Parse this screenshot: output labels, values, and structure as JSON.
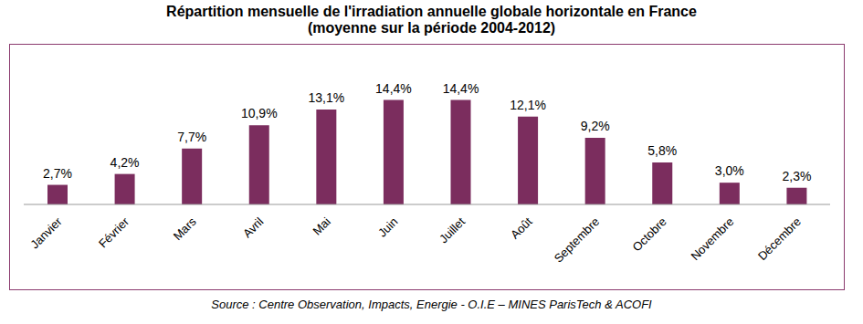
{
  "chart_data": {
    "type": "bar",
    "title": "Répartition mensuelle de l'irradiation annuelle globale horizontale en France",
    "subtitle": "(moyenne sur la période 2004-2012)",
    "source": "Source : Centre Observation, Impacts, Energie - O.I.E – MINES ParisTech & ACOFI",
    "categories": [
      "Janvier",
      "Février",
      "Mars",
      "Avril",
      "Mai",
      "Juin",
      "Juillet",
      "Août",
      "Septembre",
      "Octobre",
      "Novembre",
      "Décembre"
    ],
    "values": [
      2.7,
      4.2,
      7.7,
      10.9,
      13.1,
      14.4,
      14.4,
      12.1,
      9.2,
      5.8,
      3.0,
      2.3
    ],
    "value_labels": [
      "2,7%",
      "4,2%",
      "7,7%",
      "10,9%",
      "13,1%",
      "14,4%",
      "14,4%",
      "12,1%",
      "9,2%",
      "5,8%",
      "3,0%",
      "2,3%"
    ],
    "color": "#7b2d5e",
    "ylim": [
      0,
      19
    ],
    "data_labels": true,
    "tick_labels": "x",
    "grid": false
  }
}
